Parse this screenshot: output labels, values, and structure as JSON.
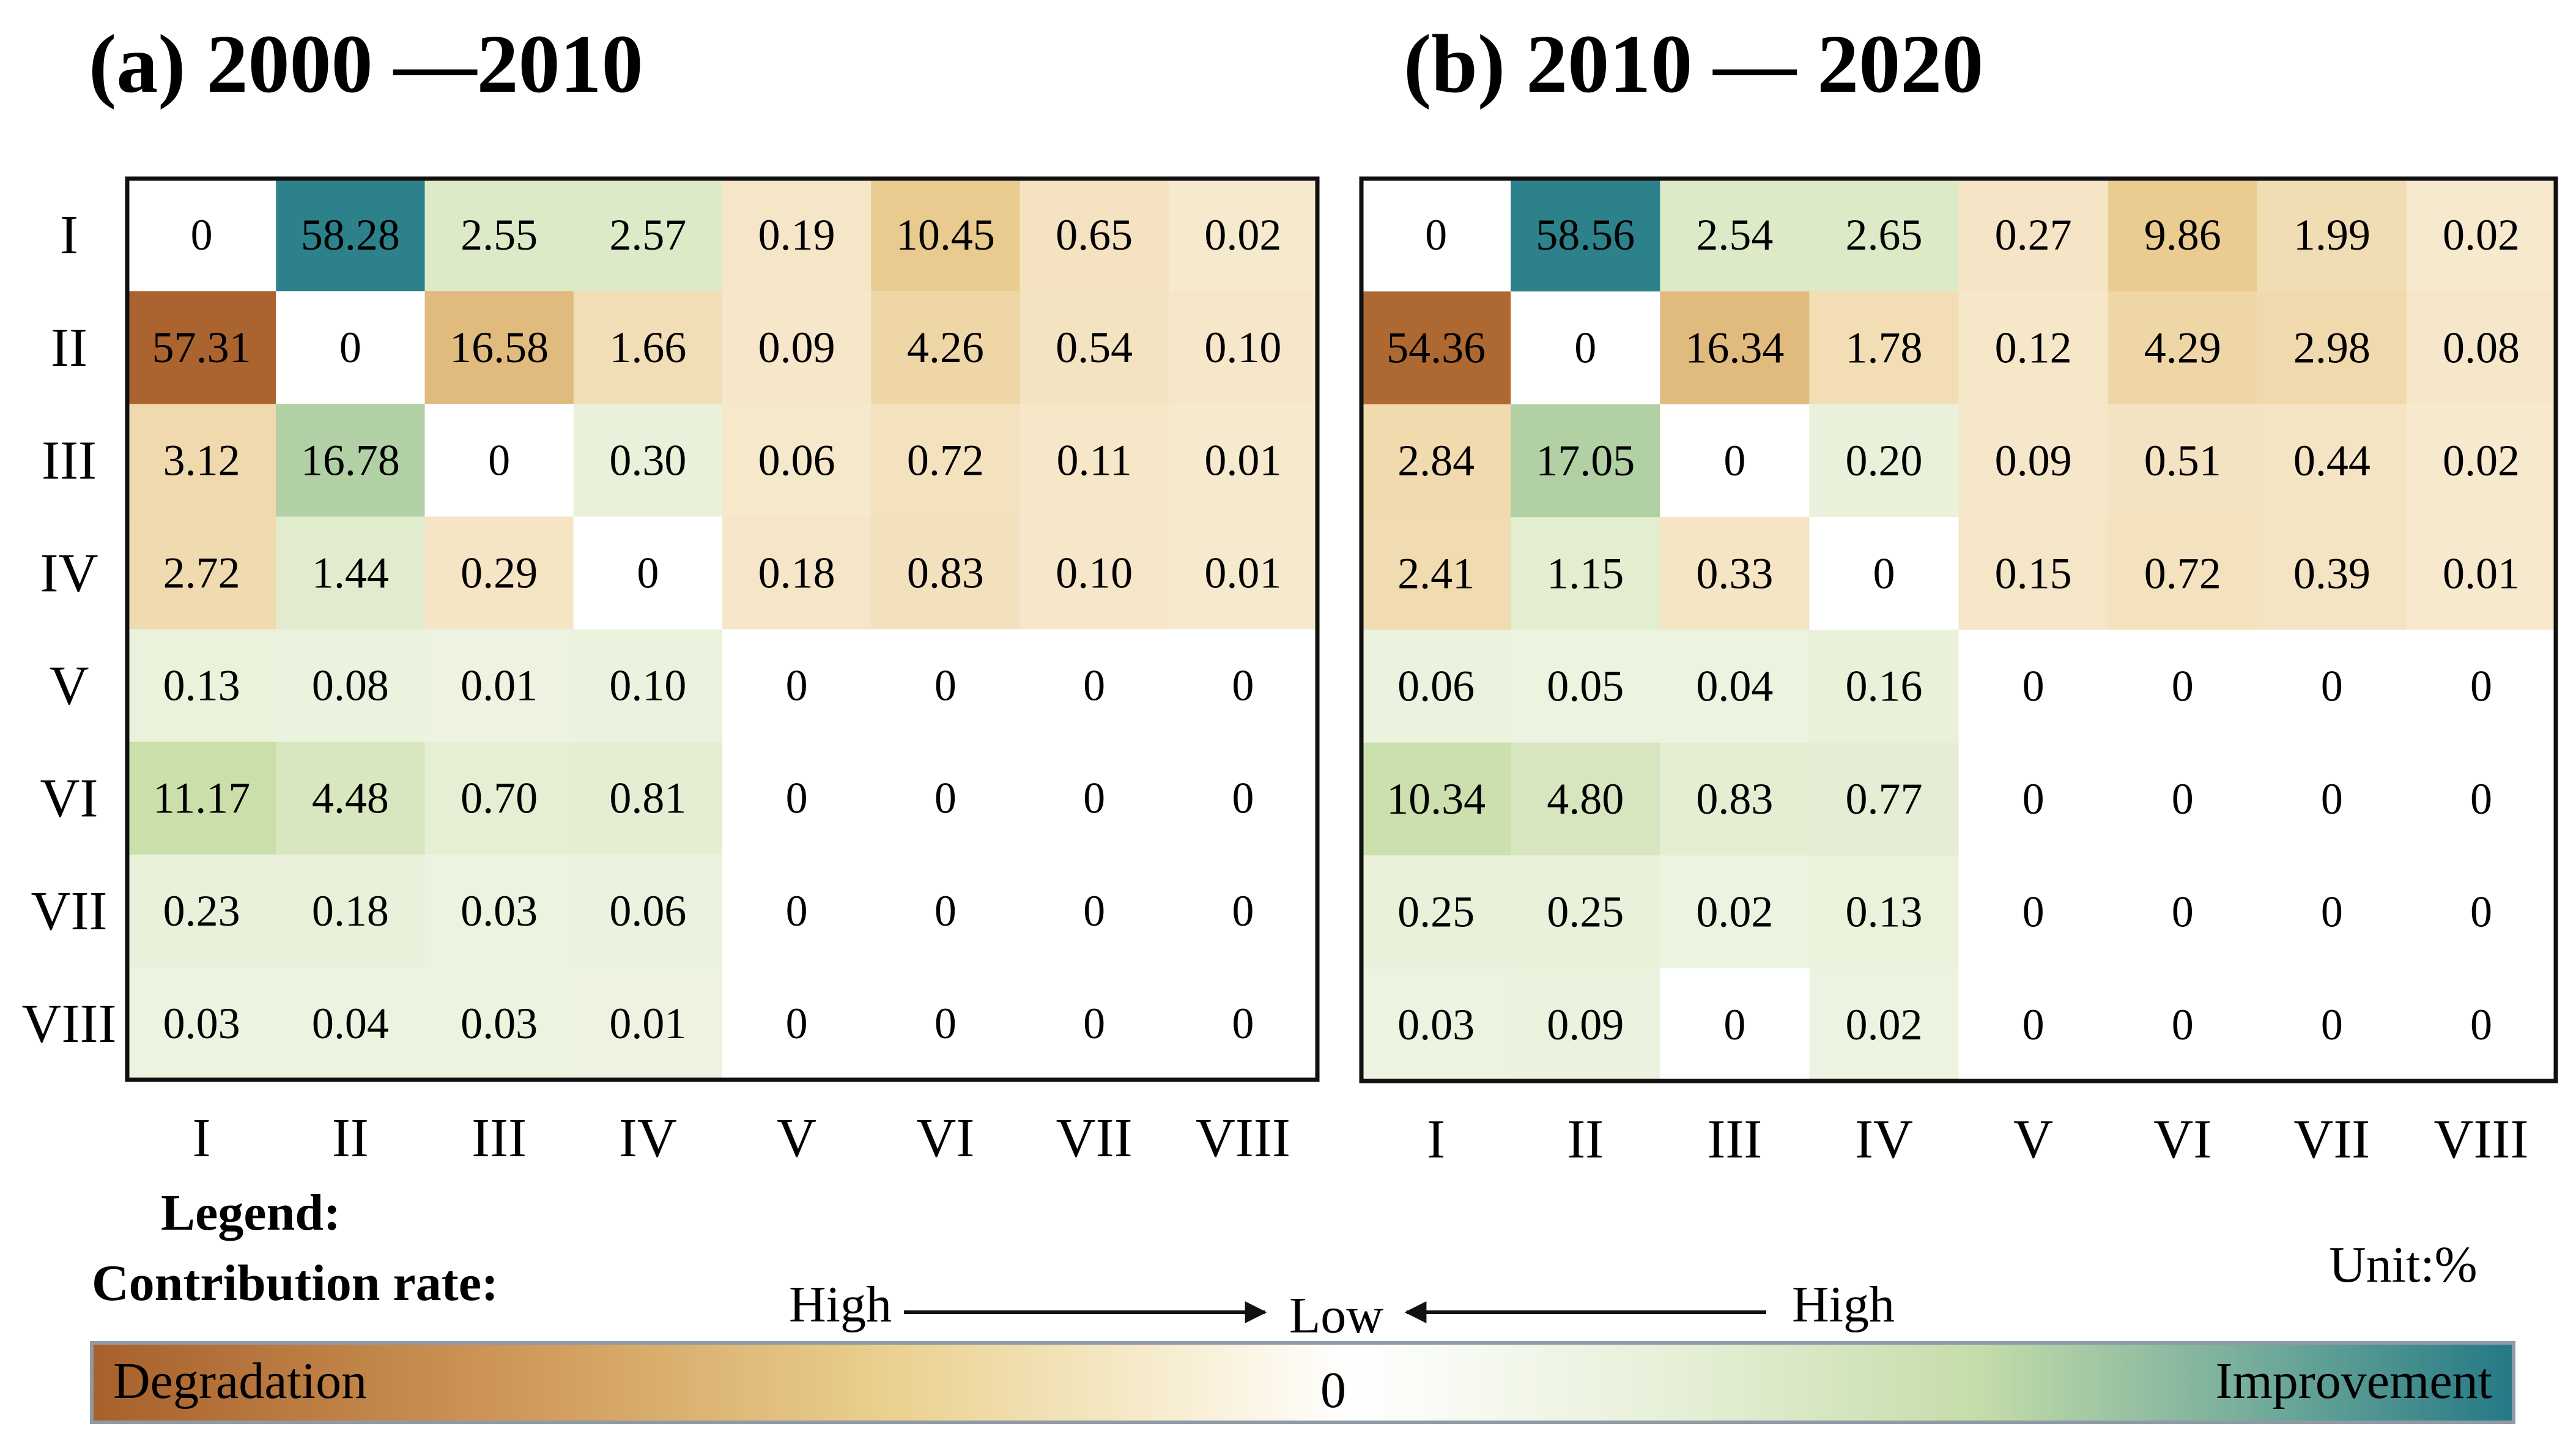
{
  "chart_data": [
    {
      "type": "heatmap",
      "title": "(a) 2000 —2010",
      "x_categories": [
        "I",
        "II",
        "III",
        "IV",
        "V",
        "VI",
        "VII",
        "VIII"
      ],
      "y_categories": [
        "I",
        "II",
        "III",
        "IV",
        "V",
        "VI",
        "VII",
        "VIII"
      ],
      "values": [
        [
          "0",
          "58.28",
          "2.55",
          "2.57",
          "0.19",
          "10.45",
          "0.65",
          "0.02"
        ],
        [
          "57.31",
          "0",
          "16.58",
          "1.66",
          "0.09",
          "4.26",
          "0.54",
          "0.10"
        ],
        [
          "3.12",
          "16.78",
          "0",
          "0.30",
          "0.06",
          "0.72",
          "0.11",
          "0.01"
        ],
        [
          "2.72",
          "1.44",
          "0.29",
          "0",
          "0.18",
          "0.83",
          "0.10",
          "0.01"
        ],
        [
          "0.13",
          "0.08",
          "0.01",
          "0.10",
          "0",
          "0",
          "0",
          "0"
        ],
        [
          "11.17",
          "4.48",
          "0.70",
          "0.81",
          "0",
          "0",
          "0",
          "0"
        ],
        [
          "0.23",
          "0.18",
          "0.03",
          "0.06",
          "0",
          "0",
          "0",
          "0"
        ],
        [
          "0.03",
          "0.04",
          "0.03",
          "0.01",
          "0",
          "0",
          "0",
          "0"
        ]
      ],
      "signs": [
        [
          0,
          1,
          1,
          1,
          -1,
          -1,
          -1,
          -1
        ],
        [
          -1,
          0,
          -1,
          -1,
          -1,
          -1,
          -1,
          -1
        ],
        [
          -1,
          1,
          0,
          1,
          -1,
          -1,
          -1,
          -1
        ],
        [
          -1,
          1,
          -1,
          0,
          -1,
          -1,
          -1,
          -1
        ],
        [
          1,
          1,
          1,
          1,
          0,
          0,
          0,
          0
        ],
        [
          1,
          1,
          1,
          1,
          0,
          0,
          0,
          0
        ],
        [
          1,
          1,
          1,
          1,
          0,
          0,
          0,
          0
        ],
        [
          1,
          1,
          1,
          1,
          0,
          0,
          0,
          0
        ]
      ]
    },
    {
      "type": "heatmap",
      "title": "(b) 2010 — 2020",
      "x_categories": [
        "I",
        "II",
        "III",
        "IV",
        "V",
        "VI",
        "VII",
        "VIII"
      ],
      "y_categories": [
        "I",
        "II",
        "III",
        "IV",
        "V",
        "VI",
        "VII",
        "VIII"
      ],
      "values": [
        [
          "0",
          "58.56",
          "2.54",
          "2.65",
          "0.27",
          "9.86",
          "1.99",
          "0.02"
        ],
        [
          "54.36",
          "0",
          "16.34",
          "1.78",
          "0.12",
          "4.29",
          "2.98",
          "0.08"
        ],
        [
          "2.84",
          "17.05",
          "0",
          "0.20",
          "0.09",
          "0.51",
          "0.44",
          "0.02"
        ],
        [
          "2.41",
          "1.15",
          "0.33",
          "0",
          "0.15",
          "0.72",
          "0.39",
          "0.01"
        ],
        [
          "0.06",
          "0.05",
          "0.04",
          "0.16",
          "0",
          "0",
          "0",
          "0"
        ],
        [
          "10.34",
          "4.80",
          "0.83",
          "0.77",
          "0",
          "0",
          "0",
          "0"
        ],
        [
          "0.25",
          "0.25",
          "0.02",
          "0.13",
          "0",
          "0",
          "0",
          "0"
        ],
        [
          "0.03",
          "0.09",
          "0",
          "0.02",
          "0",
          "0",
          "0",
          "0"
        ]
      ],
      "signs": [
        [
          0,
          1,
          1,
          1,
          -1,
          -1,
          -1,
          -1
        ],
        [
          -1,
          0,
          -1,
          -1,
          -1,
          -1,
          -1,
          -1
        ],
        [
          -1,
          1,
          0,
          1,
          -1,
          -1,
          -1,
          -1
        ],
        [
          -1,
          1,
          -1,
          0,
          -1,
          -1,
          -1,
          -1
        ],
        [
          1,
          1,
          1,
          1,
          0,
          0,
          0,
          0
        ],
        [
          1,
          1,
          1,
          1,
          0,
          0,
          0,
          0
        ],
        [
          1,
          1,
          1,
          1,
          0,
          0,
          0,
          0
        ],
        [
          1,
          1,
          1,
          1,
          0,
          0,
          0,
          0
        ]
      ]
    }
  ],
  "legend": {
    "heading": "Legend:",
    "scale_label": "Contribution rate:",
    "high_left": "High",
    "low": "Low",
    "high_right": "High",
    "unit": "Unit:%",
    "bar_left": "Degradation",
    "bar_center": "0",
    "bar_right": "Improvement"
  },
  "colors": {
    "degrade_strong": "#a8602b",
    "degrade_mid": "#e9c98a",
    "degrade_light": "#f7ead0",
    "neutral": "#ffffff",
    "improve_light": "#eef4e2",
    "improve_mid": "#c9dea9",
    "improve_strong": "#297f8a",
    "border": "#111111"
  }
}
